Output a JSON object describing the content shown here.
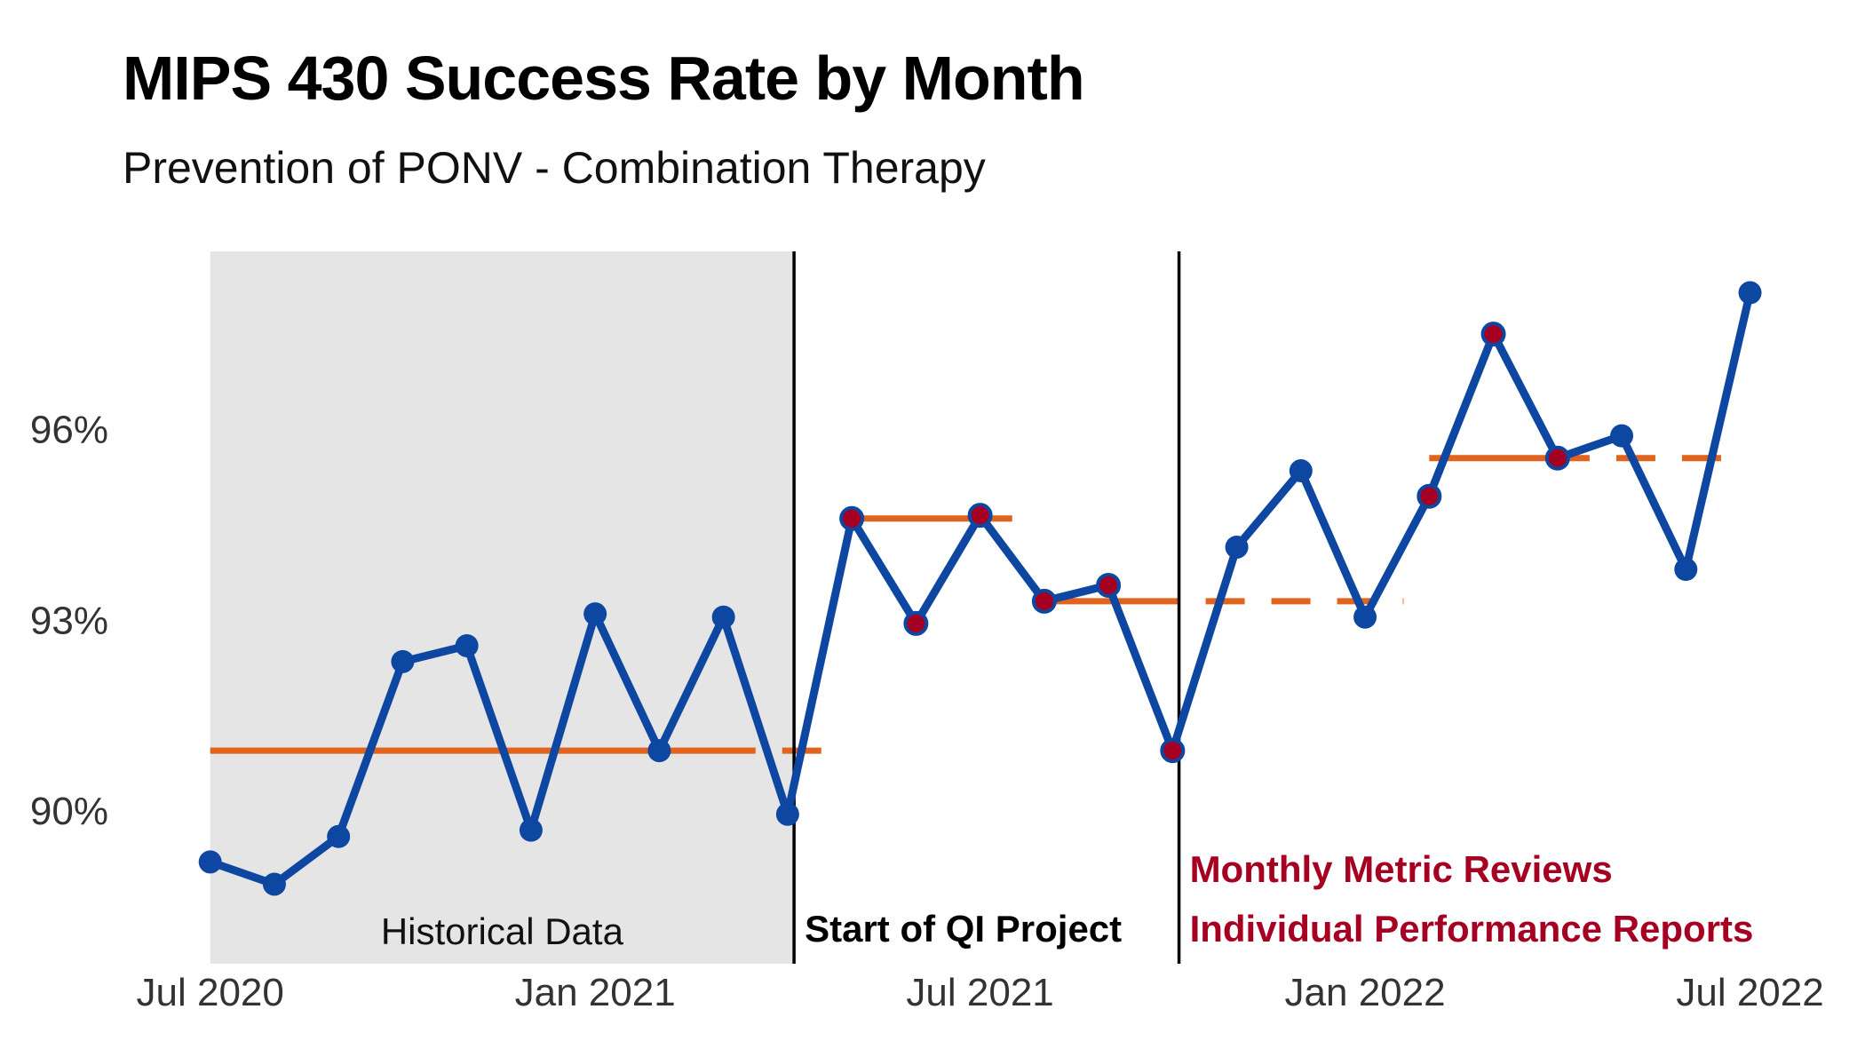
{
  "chart_data": {
    "type": "line",
    "title": "MIPS 430 Success Rate by Month",
    "subtitle": "Prevention of PONV - Combination Therapy",
    "xlabel": "",
    "ylabel": "",
    "x_ticks": [
      {
        "label": "Jul 2020",
        "month_index": 0
      },
      {
        "label": "Jan 2021",
        "month_index": 6
      },
      {
        "label": "Jul 2021",
        "month_index": 12
      },
      {
        "label": "Jan 2022",
        "month_index": 18
      },
      {
        "label": "Jul 2022",
        "month_index": 24
      }
    ],
    "y_ticks": [
      {
        "label": "90%",
        "value": 90
      },
      {
        "label": "93%",
        "value": 93
      },
      {
        "label": "96%",
        "value": 96
      }
    ],
    "ylim": [
      87.6,
      98.8
    ],
    "xlim": [
      -1.2,
      25.1
    ],
    "series": [
      {
        "name": "Success Rate",
        "color": "#0D47A1",
        "points": [
          {
            "month": "Jul 2020",
            "value": 89.2,
            "signal": false
          },
          {
            "month": "Aug 2020",
            "value": 88.85,
            "signal": false
          },
          {
            "month": "Sep 2020",
            "value": 89.6,
            "signal": false
          },
          {
            "month": "Oct 2020",
            "value": 92.35,
            "signal": false
          },
          {
            "month": "Nov 2020",
            "value": 92.6,
            "signal": false
          },
          {
            "month": "Dec 2020",
            "value": 89.7,
            "signal": false
          },
          {
            "month": "Jan 2021",
            "value": 93.1,
            "signal": false
          },
          {
            "month": "Feb 2021",
            "value": 90.95,
            "signal": false
          },
          {
            "month": "Mar 2021",
            "value": 93.05,
            "signal": false
          },
          {
            "month": "Apr 2021",
            "value": 89.95,
            "signal": false
          },
          {
            "month": "May 2021",
            "value": 94.6,
            "signal": true
          },
          {
            "month": "Jun 2021",
            "value": 92.95,
            "signal": true
          },
          {
            "month": "Jul 2021",
            "value": 94.65,
            "signal": true
          },
          {
            "month": "Aug 2021",
            "value": 93.3,
            "signal": true
          },
          {
            "month": "Sep 2021",
            "value": 93.55,
            "signal": true
          },
          {
            "month": "Oct 2021",
            "value": 90.95,
            "signal": true
          },
          {
            "month": "Nov 2021",
            "value": 94.15,
            "signal": false
          },
          {
            "month": "Dec 2021",
            "value": 95.35,
            "signal": false
          },
          {
            "month": "Jan 2022",
            "value": 93.05,
            "signal": false
          },
          {
            "month": "Feb 2022",
            "value": 94.95,
            "signal": true
          },
          {
            "month": "Mar 2022",
            "value": 97.5,
            "signal": true
          },
          {
            "month": "Apr 2022",
            "value": 95.55,
            "signal": true
          },
          {
            "month": "May 2022",
            "value": 95.9,
            "signal": false
          },
          {
            "month": "Jun 2022",
            "value": 93.8,
            "signal": false
          },
          {
            "month": "Jul 2022",
            "value": 98.15,
            "signal": false
          }
        ]
      }
    ],
    "center_lines": [
      {
        "name": "baseline",
        "value": 90.95,
        "solid_from": 0,
        "solid_to": 8.5,
        "dashed_to": 9.6
      },
      {
        "name": "phase-1",
        "value": 94.6,
        "solid_from": 10,
        "solid_to": 12.5,
        "dashed_to": 12.5
      },
      {
        "name": "phase-2",
        "value": 93.3,
        "solid_from": 13,
        "solid_to": 15.1,
        "dashed_to": 18.6
      },
      {
        "name": "phase-3",
        "value": 95.55,
        "solid_from": 19,
        "solid_to": 21.5,
        "dashed_to": 23.6
      }
    ],
    "center_line_color": "#E0631E",
    "signal_point_color": "#A50021",
    "phase_lines": [
      {
        "name": "start-qi-line",
        "month_position": 9.1
      },
      {
        "name": "interventions-line",
        "month_position": 15.1
      }
    ],
    "shaded_region": {
      "from": 0,
      "to": 9.1,
      "color": "#E5E5E5"
    },
    "annotations": {
      "historical": "Historical Data",
      "start_qi": "Start of QI Project",
      "interventions": [
        "Monthly Metric Reviews",
        "Individual Performance Reports"
      ]
    }
  }
}
